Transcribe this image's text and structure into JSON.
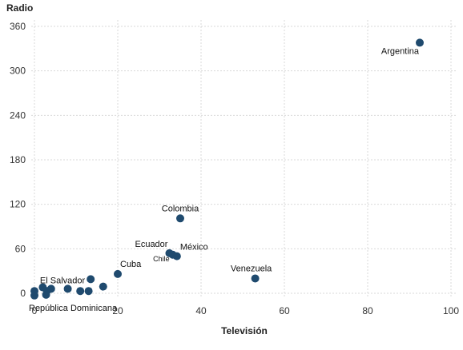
{
  "chart_data": {
    "type": "scatter",
    "xlabel": "Televisión",
    "ylabel": "Radio",
    "xlim": [
      0,
      100
    ],
    "ylim": [
      0,
      360
    ],
    "xticks": [
      0,
      20,
      40,
      60,
      80,
      100
    ],
    "yticks": [
      0,
      60,
      120,
      180,
      240,
      300,
      360
    ],
    "grid": true,
    "point_color": "#1f4a6e",
    "points": [
      {
        "x": 92.5,
        "y": 338,
        "label": "Argentina"
      },
      {
        "x": 35,
        "y": 101,
        "label": "Colombia"
      },
      {
        "x": 32.4,
        "y": 54,
        "label": "Ecuador"
      },
      {
        "x": 34.2,
        "y": 50,
        "label": "México"
      },
      {
        "x": 33.2,
        "y": 52,
        "label": "Chile",
        "small": true
      },
      {
        "x": 53,
        "y": 20,
        "label": "Venezuela"
      },
      {
        "x": 20,
        "y": 26,
        "label": "Cuba"
      },
      {
        "x": 13.5,
        "y": 19,
        "label": "El Salvador"
      },
      {
        "x": 0,
        "y": -3,
        "label": "República Dominicana"
      },
      {
        "x": 0,
        "y": 3
      },
      {
        "x": 2,
        "y": 8
      },
      {
        "x": 3,
        "y": 3
      },
      {
        "x": 4,
        "y": 6
      },
      {
        "x": 2.8,
        "y": -2
      },
      {
        "x": 8,
        "y": 6
      },
      {
        "x": 11,
        "y": 3
      },
      {
        "x": 13,
        "y": 3
      },
      {
        "x": 16.5,
        "y": 9
      }
    ]
  }
}
